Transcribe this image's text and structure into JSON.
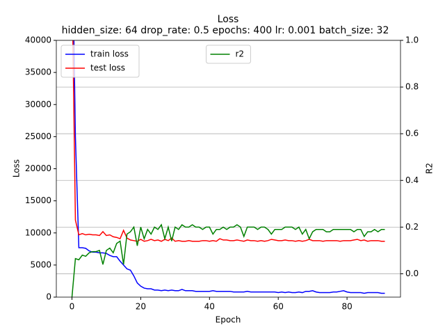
{
  "chart_data": {
    "type": "line",
    "title": "Loss",
    "subtitle": "hidden_size: 64 drop_rate: 0.5 epochs: 400 lr: 0.001 batch_size: 32",
    "x_label": "Epoch",
    "y_label": "Loss",
    "y2_label": "R2",
    "x": [
      0,
      1,
      2,
      3,
      4,
      5,
      6,
      7,
      8,
      9,
      10,
      11,
      12,
      13,
      14,
      15,
      16,
      17,
      18,
      19,
      20,
      21,
      22,
      23,
      24,
      25,
      26,
      27,
      28,
      29,
      30,
      31,
      32,
      33,
      34,
      35,
      36,
      37,
      38,
      39,
      40,
      41,
      42,
      43,
      44,
      45,
      46,
      47,
      48,
      49,
      50,
      51,
      52,
      53,
      54,
      55,
      56,
      57,
      58,
      59,
      60,
      61,
      62,
      63,
      64,
      65,
      66,
      67,
      68,
      69,
      70,
      71,
      72,
      73,
      74,
      75,
      76,
      77,
      78,
      79,
      80,
      81,
      82,
      83,
      84,
      85,
      86,
      87,
      88,
      89,
      90,
      91
    ],
    "series": [
      {
        "name": "train loss",
        "color": "#0000ff",
        "values": [
          60000,
          25000,
          7700,
          7700,
          7600,
          7200,
          7000,
          7000,
          6900,
          6900,
          6800,
          6500,
          6300,
          6300,
          5600,
          5000,
          4400,
          4200,
          3300,
          2200,
          1700,
          1400,
          1300,
          1300,
          1100,
          1100,
          1000,
          1100,
          1000,
          1100,
          1000,
          1000,
          1200,
          1000,
          1000,
          1000,
          900,
          900,
          900,
          900,
          900,
          1000,
          900,
          900,
          900,
          900,
          900,
          800,
          800,
          800,
          800,
          900,
          800,
          800,
          800,
          800,
          800,
          800,
          800,
          800,
          700,
          800,
          700,
          800,
          700,
          700,
          800,
          700,
          900,
          900,
          1000,
          800,
          700,
          700,
          700,
          700,
          800,
          800,
          900,
          1000,
          800,
          700,
          700,
          700,
          700,
          600,
          700,
          700,
          700,
          700,
          600,
          600
        ]
      },
      {
        "name": "test loss",
        "color": "#ff0000",
        "values": [
          50000,
          12000,
          9700,
          9900,
          9700,
          9800,
          9700,
          9700,
          9600,
          10200,
          9600,
          9700,
          9400,
          9300,
          9100,
          10400,
          9200,
          8900,
          8800,
          8700,
          9000,
          8700,
          8800,
          9000,
          8800,
          8900,
          8700,
          9000,
          8800,
          9200,
          8700,
          8800,
          8700,
          8700,
          8800,
          8700,
          8700,
          8700,
          8800,
          8800,
          8700,
          8800,
          8700,
          9100,
          8900,
          8900,
          8800,
          8800,
          8900,
          8800,
          8700,
          8900,
          8800,
          8800,
          8700,
          8800,
          8700,
          8800,
          9000,
          8900,
          8800,
          8800,
          8900,
          8800,
          8800,
          8700,
          8800,
          8700,
          8800,
          9000,
          8800,
          8800,
          8800,
          8700,
          8800,
          8800,
          8800,
          8800,
          8700,
          8800,
          8800,
          8800,
          8900,
          9000,
          8800,
          8900,
          8700,
          8800,
          8800,
          8800,
          8700,
          8700
        ]
      },
      {
        "name": "r2",
        "color": "#008000",
        "axis": "y2",
        "values": [
          -0.1,
          0.065,
          0.06,
          0.08,
          0.075,
          0.09,
          0.095,
          0.095,
          0.1,
          0.04,
          0.1,
          0.11,
          0.09,
          0.13,
          0.14,
          0.04,
          0.17,
          0.18,
          0.2,
          0.12,
          0.2,
          0.15,
          0.19,
          0.17,
          0.2,
          0.19,
          0.21,
          0.15,
          0.2,
          0.14,
          0.2,
          0.19,
          0.21,
          0.2,
          0.2,
          0.21,
          0.2,
          0.2,
          0.19,
          0.2,
          0.2,
          0.17,
          0.19,
          0.19,
          0.2,
          0.19,
          0.2,
          0.2,
          0.21,
          0.2,
          0.16,
          0.2,
          0.2,
          0.2,
          0.19,
          0.2,
          0.2,
          0.19,
          0.17,
          0.19,
          0.19,
          0.19,
          0.2,
          0.2,
          0.2,
          0.19,
          0.2,
          0.17,
          0.19,
          0.15,
          0.18,
          0.19,
          0.19,
          0.19,
          0.18,
          0.18,
          0.19,
          0.19,
          0.19,
          0.19,
          0.19,
          0.19,
          0.18,
          0.19,
          0.19,
          0.16,
          0.18,
          0.18,
          0.19,
          0.18,
          0.19,
          0.19
        ]
      }
    ],
    "xlim": [
      -4.55,
      95.55
    ],
    "xticks": [
      0,
      20,
      40,
      60,
      80
    ],
    "ylim": [
      0,
      40000
    ],
    "yticks": [
      0,
      5000,
      10000,
      15000,
      20000,
      25000,
      30000,
      35000,
      40000
    ],
    "y2lim": [
      -0.1,
      1.0
    ],
    "y2ticks": [
      {
        "value": 0,
        "label": "0.0"
      },
      0.2,
      0.4,
      0.6,
      0.8,
      {
        "value": 1,
        "label": "1.0"
      }
    ],
    "grid": "y2",
    "legend": "upper left",
    "y2_legend": "upper center"
  }
}
